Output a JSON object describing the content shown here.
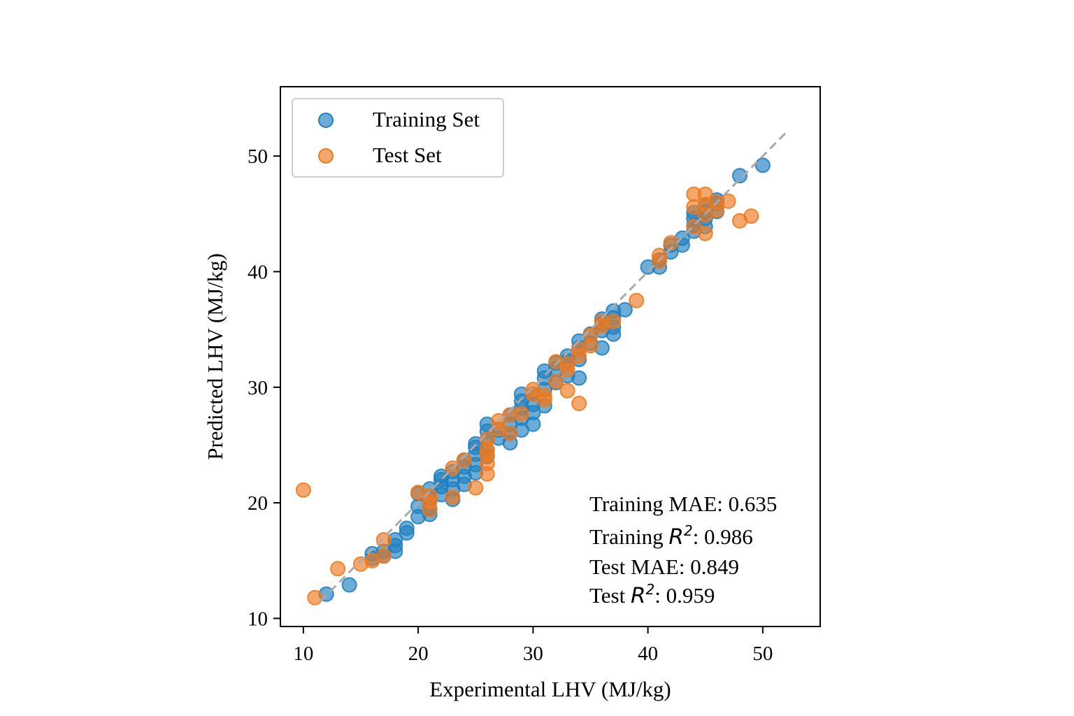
{
  "chart_data": {
    "type": "scatter",
    "xlabel": "Experimental LHV (MJ/kg)",
    "ylabel": "Predicted LHV (MJ/kg)",
    "xlim": [
      8,
      55
    ],
    "ylim": [
      9.3,
      56.0
    ],
    "xticks": [
      "10",
      "20",
      "30",
      "40",
      "50"
    ],
    "yticks": [
      "10",
      "20",
      "30",
      "40",
      "50"
    ],
    "grid": false,
    "legend_position": "top-left",
    "reference_line": {
      "style": "dashed",
      "color": "#aaaaaa",
      "from": [
        11.5,
        11.5
      ],
      "to": [
        52.2,
        52.2
      ]
    },
    "series": [
      {
        "name": "Training Set",
        "color": "#1f7fc0",
        "points": [
          [
            12,
            12.1
          ],
          [
            14,
            12.9
          ],
          [
            16,
            15.2
          ],
          [
            16,
            15.6
          ],
          [
            17,
            15.4
          ],
          [
            17,
            15.8
          ],
          [
            18,
            15.8
          ],
          [
            18,
            16.3
          ],
          [
            18,
            16.8
          ],
          [
            19,
            17.4
          ],
          [
            19,
            17.8
          ],
          [
            20,
            18.8
          ],
          [
            20,
            19.7
          ],
          [
            20,
            20.8
          ],
          [
            21,
            19.0
          ],
          [
            21,
            19.5
          ],
          [
            21,
            20.4
          ],
          [
            21,
            21.2
          ],
          [
            22,
            20.7
          ],
          [
            22,
            21.4
          ],
          [
            22,
            22.0
          ],
          [
            22,
            22.3
          ],
          [
            23,
            20.3
          ],
          [
            23,
            21.2
          ],
          [
            23,
            22.0
          ],
          [
            23,
            22.7
          ],
          [
            24,
            21.6
          ],
          [
            24,
            22.3
          ],
          [
            24,
            23.1
          ],
          [
            24,
            23.7
          ],
          [
            25,
            22.6
          ],
          [
            25,
            23.3
          ],
          [
            25,
            24.2
          ],
          [
            25,
            24.8
          ],
          [
            25,
            25.1
          ],
          [
            26,
            24.0
          ],
          [
            26,
            24.6
          ],
          [
            26,
            25.5
          ],
          [
            26,
            26.2
          ],
          [
            26,
            26.8
          ],
          [
            27,
            25.6
          ],
          [
            27,
            26.3
          ],
          [
            28,
            25.2
          ],
          [
            28,
            26.0
          ],
          [
            28,
            26.8
          ],
          [
            28,
            27.6
          ],
          [
            29,
            26.3
          ],
          [
            29,
            27.3
          ],
          [
            29,
            28.2
          ],
          [
            29,
            28.8
          ],
          [
            29,
            29.4
          ],
          [
            30,
            26.8
          ],
          [
            30,
            27.8
          ],
          [
            30,
            28.5
          ],
          [
            30,
            29.4
          ],
          [
            31,
            28.4
          ],
          [
            31,
            29.8
          ],
          [
            31,
            30.8
          ],
          [
            31,
            31.4
          ],
          [
            32,
            30.4
          ],
          [
            32,
            31.6
          ],
          [
            32,
            32.1
          ],
          [
            33,
            31.0
          ],
          [
            33,
            32.3
          ],
          [
            33,
            32.7
          ],
          [
            34,
            30.8
          ],
          [
            34,
            32.4
          ],
          [
            34,
            33.4
          ],
          [
            34,
            34.0
          ],
          [
            35,
            33.8
          ],
          [
            35,
            34.6
          ],
          [
            36,
            33.4
          ],
          [
            36,
            34.9
          ],
          [
            36,
            35.5
          ],
          [
            36,
            35.9
          ],
          [
            37,
            34.6
          ],
          [
            37,
            35.2
          ],
          [
            37,
            36.0
          ],
          [
            37,
            36.6
          ],
          [
            38,
            36.7
          ],
          [
            40,
            40.4
          ],
          [
            41,
            40.4
          ],
          [
            41,
            41.0
          ],
          [
            42,
            41.7
          ],
          [
            42,
            42.3
          ],
          [
            43,
            42.3
          ],
          [
            43,
            42.9
          ],
          [
            44,
            43.5
          ],
          [
            44,
            44.0
          ],
          [
            44,
            44.6
          ],
          [
            44,
            45.1
          ],
          [
            45,
            43.9
          ],
          [
            45,
            44.6
          ],
          [
            45,
            45.2
          ],
          [
            45,
            45.7
          ],
          [
            46,
            45.2
          ],
          [
            46,
            45.9
          ],
          [
            46,
            46.2
          ],
          [
            48,
            48.3
          ],
          [
            50,
            49.2
          ]
        ]
      },
      {
        "name": "Test Set",
        "color": "#ee7a1f",
        "points": [
          [
            10,
            21.1
          ],
          [
            11,
            11.8
          ],
          [
            13,
            14.3
          ],
          [
            15,
            14.7
          ],
          [
            16,
            15.0
          ],
          [
            17,
            15.4
          ],
          [
            17,
            16.8
          ],
          [
            20,
            20.9
          ],
          [
            21,
            19.4
          ],
          [
            21,
            20.1
          ],
          [
            21,
            20.6
          ],
          [
            23,
            20.5
          ],
          [
            23,
            23.0
          ],
          [
            24,
            23.7
          ],
          [
            25,
            21.3
          ],
          [
            26,
            22.5
          ],
          [
            26,
            23.4
          ],
          [
            26,
            24.1
          ],
          [
            26,
            24.6
          ],
          [
            26,
            25.5
          ],
          [
            27,
            26.4
          ],
          [
            27,
            27.1
          ],
          [
            28,
            26.0
          ],
          [
            28,
            27.6
          ],
          [
            29,
            27.7
          ],
          [
            30,
            29.4
          ],
          [
            30,
            29.8
          ],
          [
            31,
            28.9
          ],
          [
            31,
            29.3
          ],
          [
            32,
            30.5
          ],
          [
            32,
            32.2
          ],
          [
            33,
            29.7
          ],
          [
            33,
            31.5
          ],
          [
            33,
            32.0
          ],
          [
            34,
            28.6
          ],
          [
            34,
            32.7
          ],
          [
            34,
            33.3
          ],
          [
            35,
            33.6
          ],
          [
            35,
            34.5
          ],
          [
            36,
            35.3
          ],
          [
            36,
            35.7
          ],
          [
            37,
            35.7
          ],
          [
            39,
            37.5
          ],
          [
            41,
            40.9
          ],
          [
            41,
            41.4
          ],
          [
            42,
            42.5
          ],
          [
            44,
            43.9
          ],
          [
            44,
            45.6
          ],
          [
            44,
            46.7
          ],
          [
            45,
            43.3
          ],
          [
            45,
            44.9
          ],
          [
            45,
            45.8
          ],
          [
            45,
            46.7
          ],
          [
            46,
            45.3
          ],
          [
            46,
            46.0
          ],
          [
            47,
            46.1
          ],
          [
            48,
            44.4
          ],
          [
            49,
            44.8
          ]
        ]
      }
    ],
    "annotations": [
      {
        "prefix": "Training MAE: 0.635",
        "math": "",
        "suffix": ""
      },
      {
        "prefix": "Training ",
        "math": "R",
        "sup": "2",
        "suffix": ": 0.986"
      },
      {
        "prefix": "Test MAE: 0.849",
        "math": "",
        "suffix": ""
      },
      {
        "prefix": "Test ",
        "math": "R",
        "sup": "2",
        "suffix": ": 0.959"
      }
    ]
  }
}
